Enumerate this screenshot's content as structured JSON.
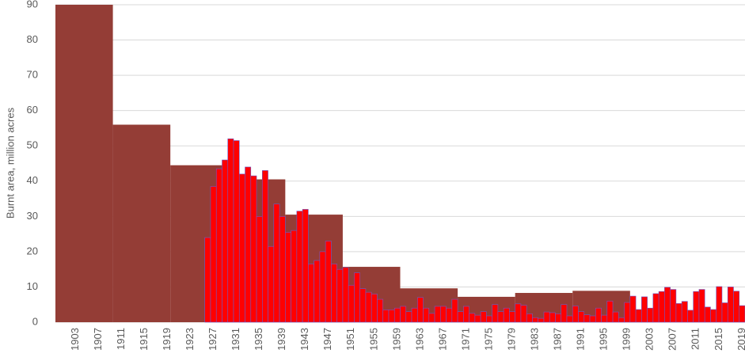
{
  "chart_data": {
    "type": "bar",
    "ylabel": "Burnt area, million acres",
    "ylim": [
      0,
      90
    ],
    "yticks": [
      0,
      10,
      20,
      30,
      40,
      50,
      60,
      70,
      80,
      90
    ],
    "grid": true,
    "xlim": [
      1899.5,
      2019.5
    ],
    "xticks": [
      1903,
      1907,
      1911,
      1915,
      1919,
      1923,
      1927,
      1931,
      1935,
      1939,
      1943,
      1947,
      1951,
      1955,
      1959,
      1963,
      1967,
      1971,
      1975,
      1979,
      1983,
      1987,
      1991,
      1995,
      1999,
      2003,
      2007,
      2011,
      2015,
      2019
    ],
    "series": [
      {
        "color": "#943d36",
        "bins": [
          1899.5,
          1909.5,
          1919.5,
          1929.5,
          1939.5,
          1949.5,
          1959.5,
          1969.5,
          1979.5,
          1989.5,
          1999.5
        ],
        "values": [
          90,
          56,
          44.5,
          40.5,
          30.5,
          15.7,
          9.6,
          7.2,
          8.3,
          8.9
        ]
      },
      {
        "color": "#ff0000",
        "x": [
          1926,
          1927,
          1928,
          1929,
          1930,
          1931,
          1932,
          1933,
          1934,
          1935,
          1936,
          1937,
          1938,
          1939,
          1940,
          1941,
          1942,
          1943,
          1944,
          1945,
          1946,
          1947,
          1948,
          1949,
          1950,
          1951,
          1952,
          1953,
          1954,
          1955,
          1956,
          1957,
          1958,
          1959,
          1960,
          1961,
          1962,
          1963,
          1964,
          1965,
          1966,
          1967,
          1968,
          1969,
          1970,
          1971,
          1972,
          1973,
          1974,
          1975,
          1976,
          1977,
          1978,
          1979,
          1980,
          1981,
          1982,
          1983,
          1984,
          1985,
          1986,
          1987,
          1988,
          1989,
          1990,
          1991,
          1992,
          1993,
          1994,
          1995,
          1996,
          1997,
          1998,
          1999,
          2000,
          2001,
          2002,
          2003,
          2004,
          2005,
          2006,
          2007,
          2008,
          2009,
          2010,
          2011,
          2012,
          2013,
          2014,
          2015,
          2016,
          2017,
          2018,
          2019
        ],
        "values": [
          24,
          38.5,
          43.5,
          46,
          52,
          51.5,
          42,
          44,
          41.5,
          30,
          43,
          21.5,
          33.5,
          30,
          25.5,
          26,
          31.5,
          32,
          16.5,
          17.5,
          20,
          23,
          16.5,
          15,
          15.5,
          10.5,
          14,
          9.5,
          8.5,
          8,
          6.5,
          3.5,
          3.5,
          4,
          4.5,
          3,
          4,
          7,
          4,
          2.5,
          4.5,
          4.5,
          4,
          6.5,
          3,
          4.5,
          2.5,
          2,
          3,
          1.8,
          5,
          3,
          4,
          3,
          5.2,
          4.8,
          2.4,
          1.3,
          1.1,
          2.9,
          2.7,
          2.4,
          5,
          1.8,
          4.6,
          3,
          2.1,
          1.8,
          4,
          2,
          6,
          2.9,
          1.3,
          5.6,
          7.4,
          3.6,
          7.2,
          4,
          8.1,
          8.7,
          9.9,
          9.3,
          5.3,
          5.9,
          3.4,
          8.7,
          9.3,
          4.3,
          3.6,
          10.1,
          5.5,
          10,
          8.8,
          4.7
        ]
      }
    ]
  }
}
